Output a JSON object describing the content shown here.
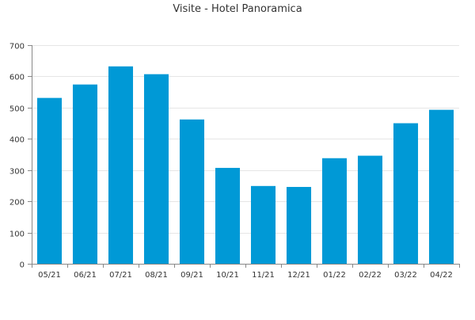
{
  "chart_data": {
    "type": "bar",
    "title": "Visite - Hotel Panoramica",
    "categories": [
      "05/21",
      "06/21",
      "07/21",
      "08/21",
      "09/21",
      "10/21",
      "11/21",
      "12/21",
      "01/22",
      "02/22",
      "03/22",
      "04/22"
    ],
    "values": [
      531,
      574,
      632,
      607,
      462,
      307,
      249,
      246,
      338,
      346,
      450,
      493
    ],
    "ylim": [
      0,
      700
    ],
    "yticks": [
      0,
      100,
      200,
      300,
      400,
      500,
      600,
      700
    ],
    "grid": true,
    "bar_color": "#0099d6",
    "grid_color": "#e6e6e6",
    "axis_color": "#888888",
    "text_color": "#333333"
  }
}
